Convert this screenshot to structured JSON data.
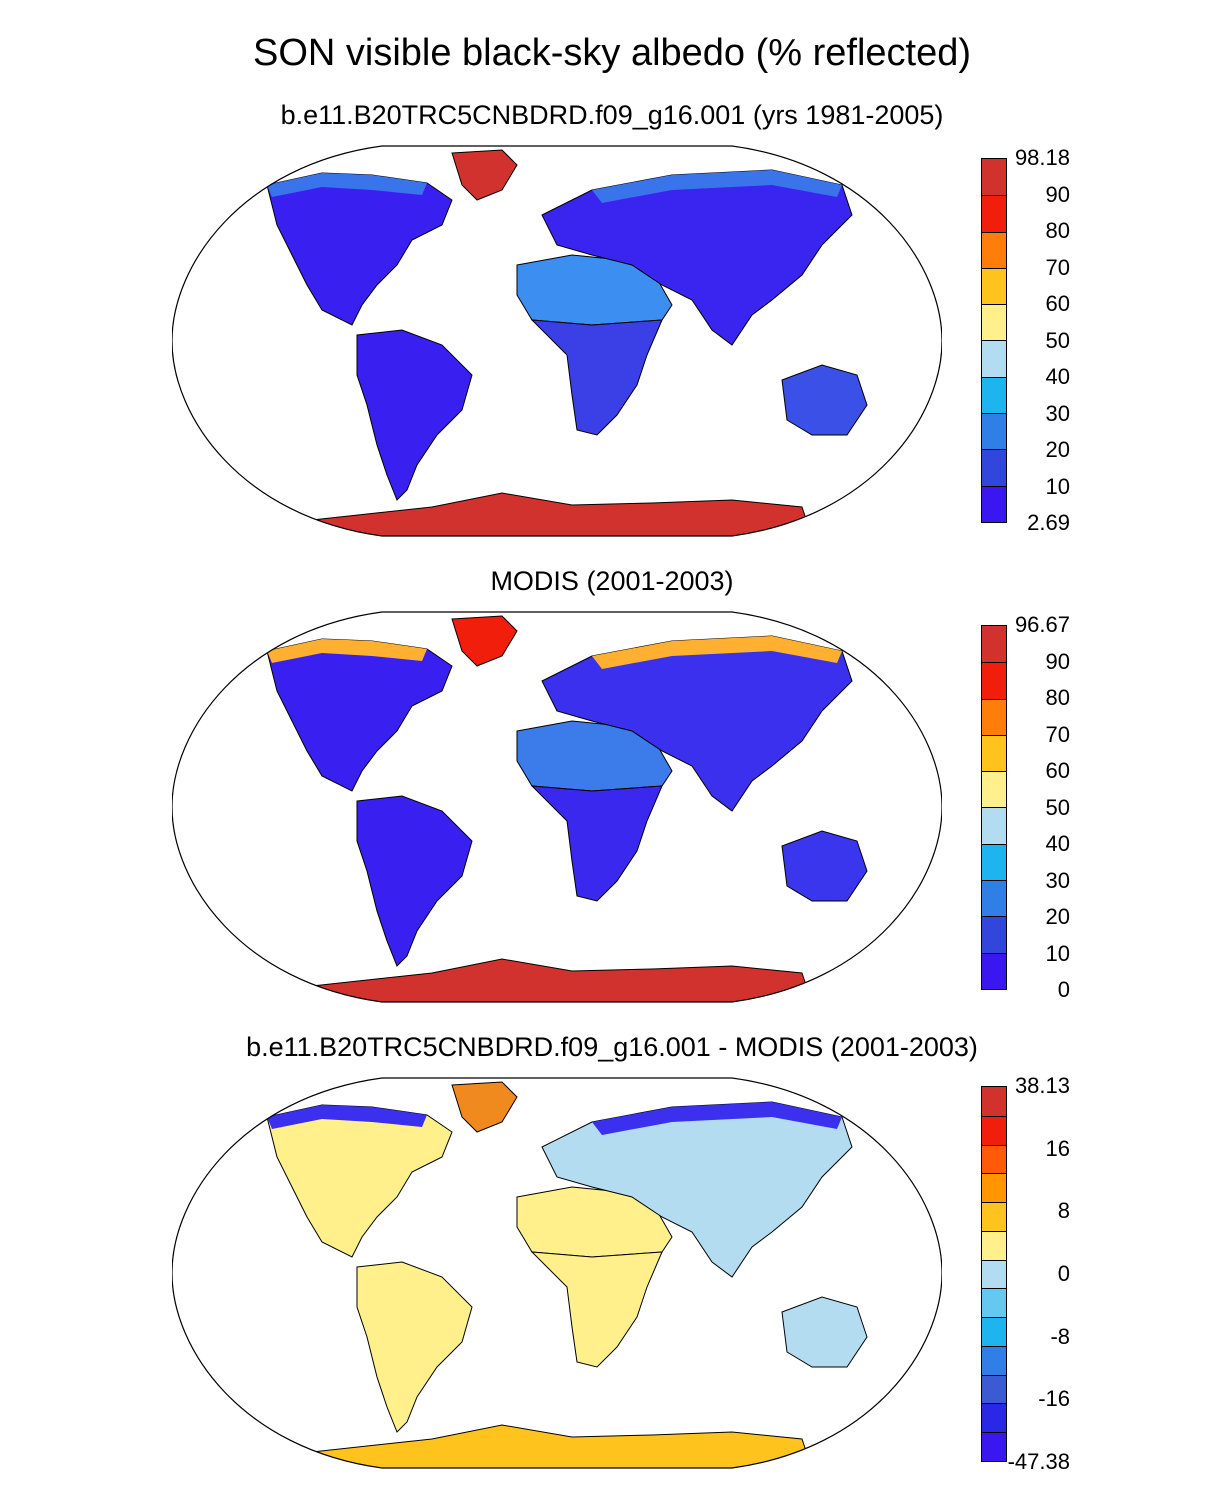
{
  "title": "SON visible black-sky albedo (% reflected)",
  "panels": [
    {
      "subtitle": "b.e11.B20TRC5CNBDRD.f09_g16.001 (yrs 1981-2005)",
      "colorbar": {
        "colors": [
          "#3a16f0",
          "#3246dc",
          "#2f7fe6",
          "#1eb4f0",
          "#b4dcf0",
          "#fff08c",
          "#ffc31e",
          "#ff7d0a",
          "#f01e0a",
          "#d2322d"
        ],
        "labels": [
          "98.18",
          "90",
          "80",
          "70",
          "60",
          "50",
          "40",
          "30",
          "20",
          "10",
          "2.69"
        ]
      },
      "land_colors": {
        "americas": "#3a20f0",
        "africa_north": "#3c8ef0",
        "africa_south": "#3a40e6",
        "eurasia": "#3a24f0",
        "australia": "#3a50e6",
        "greenland": "#d2322d",
        "antarctica": "#d2322d",
        "arctic_fringe": "#3a74ea"
      }
    },
    {
      "subtitle": "MODIS (2001-2003)",
      "colorbar": {
        "colors": [
          "#3a16f0",
          "#3246dc",
          "#2f7fe6",
          "#1eb4f0",
          "#b4dcf0",
          "#fff08c",
          "#ffc31e",
          "#ff7d0a",
          "#f01e0a",
          "#d2322d"
        ],
        "labels": [
          "96.67",
          "90",
          "80",
          "70",
          "60",
          "50",
          "40",
          "30",
          "20",
          "10",
          "0"
        ]
      },
      "land_colors": {
        "americas": "#3a20f0",
        "africa_north": "#3c7cea",
        "africa_south": "#3a28ee",
        "eurasia": "#3a30ee",
        "australia": "#3a36ee",
        "greenland": "#f01e0a",
        "antarctica": "#d2322d",
        "arctic_fringe": "#ffb030"
      }
    },
    {
      "subtitle": "b.e11.B20TRC5CNBDRD.f09_g16.001 - MODIS (2001-2003)",
      "colorbar": {
        "colors": [
          "#3a16f0",
          "#2828e6",
          "#3c5ad2",
          "#2f7fe6",
          "#1eb4f0",
          "#64c8f0",
          "#b4dcf0",
          "#fff08c",
          "#ffc31e",
          "#ff9600",
          "#ff5a0a",
          "#f01e0a",
          "#d2322d"
        ],
        "labels": [
          "38.13",
          "",
          "16",
          "",
          "8",
          "",
          "0",
          "",
          "-8",
          "",
          "-16",
          "",
          "-47.38"
        ]
      },
      "land_colors": {
        "americas": "#fff08c",
        "africa_north": "#fff08c",
        "africa_south": "#fff08c",
        "eurasia": "#b4dcf0",
        "australia": "#b4dcf0",
        "greenland": "#f08a1e",
        "antarctica": "#ffc31e",
        "arctic_fringe": "#3a30ee"
      }
    }
  ]
}
